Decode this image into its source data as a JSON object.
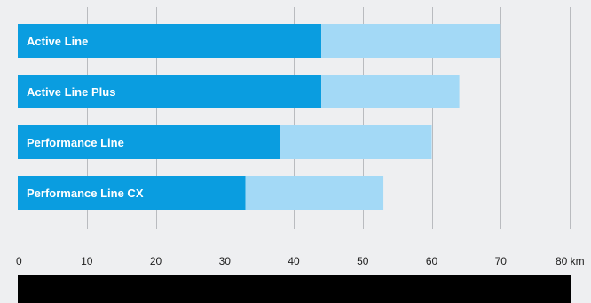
{
  "chart_data": {
    "type": "bar",
    "orientation": "horizontal",
    "stacked": true,
    "categories": [
      "Active Line",
      "Active Line Plus",
      "Performance Line",
      "Performance Line CX"
    ],
    "series": [
      {
        "values": [
          44,
          44,
          38,
          33
        ]
      },
      {
        "values": [
          26,
          20,
          22,
          20
        ]
      }
    ],
    "totals": [
      70,
      64,
      60,
      53
    ],
    "x_ticks": [
      "0",
      "10",
      "20",
      "30",
      "40",
      "50",
      "60",
      "70",
      "80 km"
    ],
    "xlim": [
      0,
      80
    ],
    "grid": true,
    "colors": {
      "background": "#eeeff1",
      "series_0": "#0a9de0",
      "series_1": "#a3d9f6",
      "grid": "#b9bbbf",
      "text_on_bar": "#ffffff",
      "tick_text": "#222222",
      "strip": "#000000"
    }
  }
}
